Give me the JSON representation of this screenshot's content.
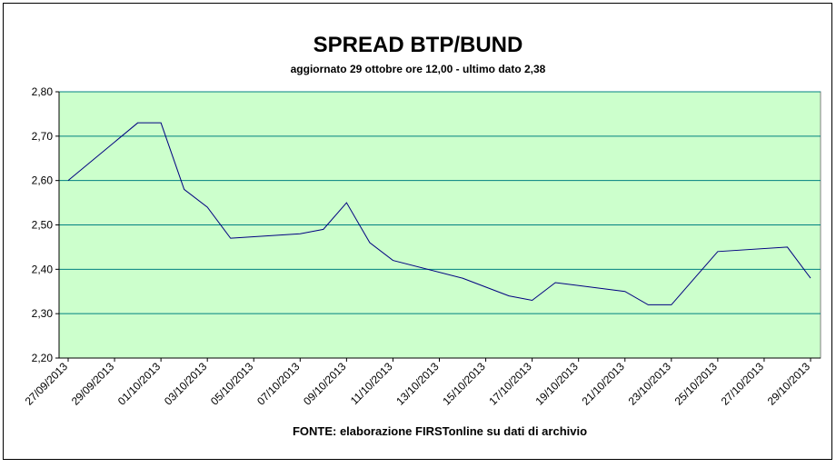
{
  "chart_data": {
    "type": "line",
    "title": "SPREAD BTP/BUND",
    "subtitle": "aggiornato 29 ottobre ore 12,00 - ultimo dato 2,38",
    "source": "FONTE: elaborazione FIRSTonline su dati di archivio",
    "x": [
      "27/09/2013",
      "30/09/2013",
      "01/10/2013",
      "02/10/2013",
      "03/10/2013",
      "04/10/2013",
      "07/10/2013",
      "08/10/2013",
      "09/10/2013",
      "10/10/2013",
      "11/10/2013",
      "14/10/2013",
      "15/10/2013",
      "16/10/2013",
      "17/10/2013",
      "18/10/2013",
      "21/10/2013",
      "22/10/2013",
      "23/10/2013",
      "24/10/2013",
      "25/10/2013",
      "28/10/2013",
      "29/10/2013"
    ],
    "values": [
      2.6,
      2.73,
      2.73,
      2.58,
      2.54,
      2.47,
      2.48,
      2.49,
      2.55,
      2.46,
      2.42,
      2.38,
      2.36,
      2.34,
      2.33,
      2.37,
      2.35,
      2.32,
      2.32,
      2.38,
      2.44,
      2.45,
      2.38
    ],
    "color": "#000080",
    "xlim": [
      "27/09/2013",
      "29/10/2013"
    ],
    "xticks": [
      "27/09/2013",
      "29/09/2013",
      "01/10/2013",
      "03/10/2013",
      "05/10/2013",
      "07/10/2013",
      "09/10/2013",
      "11/10/2013",
      "13/10/2013",
      "15/10/2013",
      "17/10/2013",
      "19/10/2013",
      "21/10/2013",
      "23/10/2013",
      "25/10/2013",
      "27/10/2013",
      "29/10/2013"
    ],
    "ylim": [
      2.2,
      2.8
    ],
    "yticks": [
      {
        "value": 2.2,
        "label": "2,20"
      },
      {
        "value": 2.3,
        "label": "2,30"
      },
      {
        "value": 2.4,
        "label": "2,40"
      },
      {
        "value": 2.5,
        "label": "2,50"
      },
      {
        "value": 2.6,
        "label": "2,60"
      },
      {
        "value": 2.7,
        "label": "2,70"
      },
      {
        "value": 2.8,
        "label": "2,80"
      }
    ],
    "grid": true,
    "background": "#ccffcc"
  }
}
